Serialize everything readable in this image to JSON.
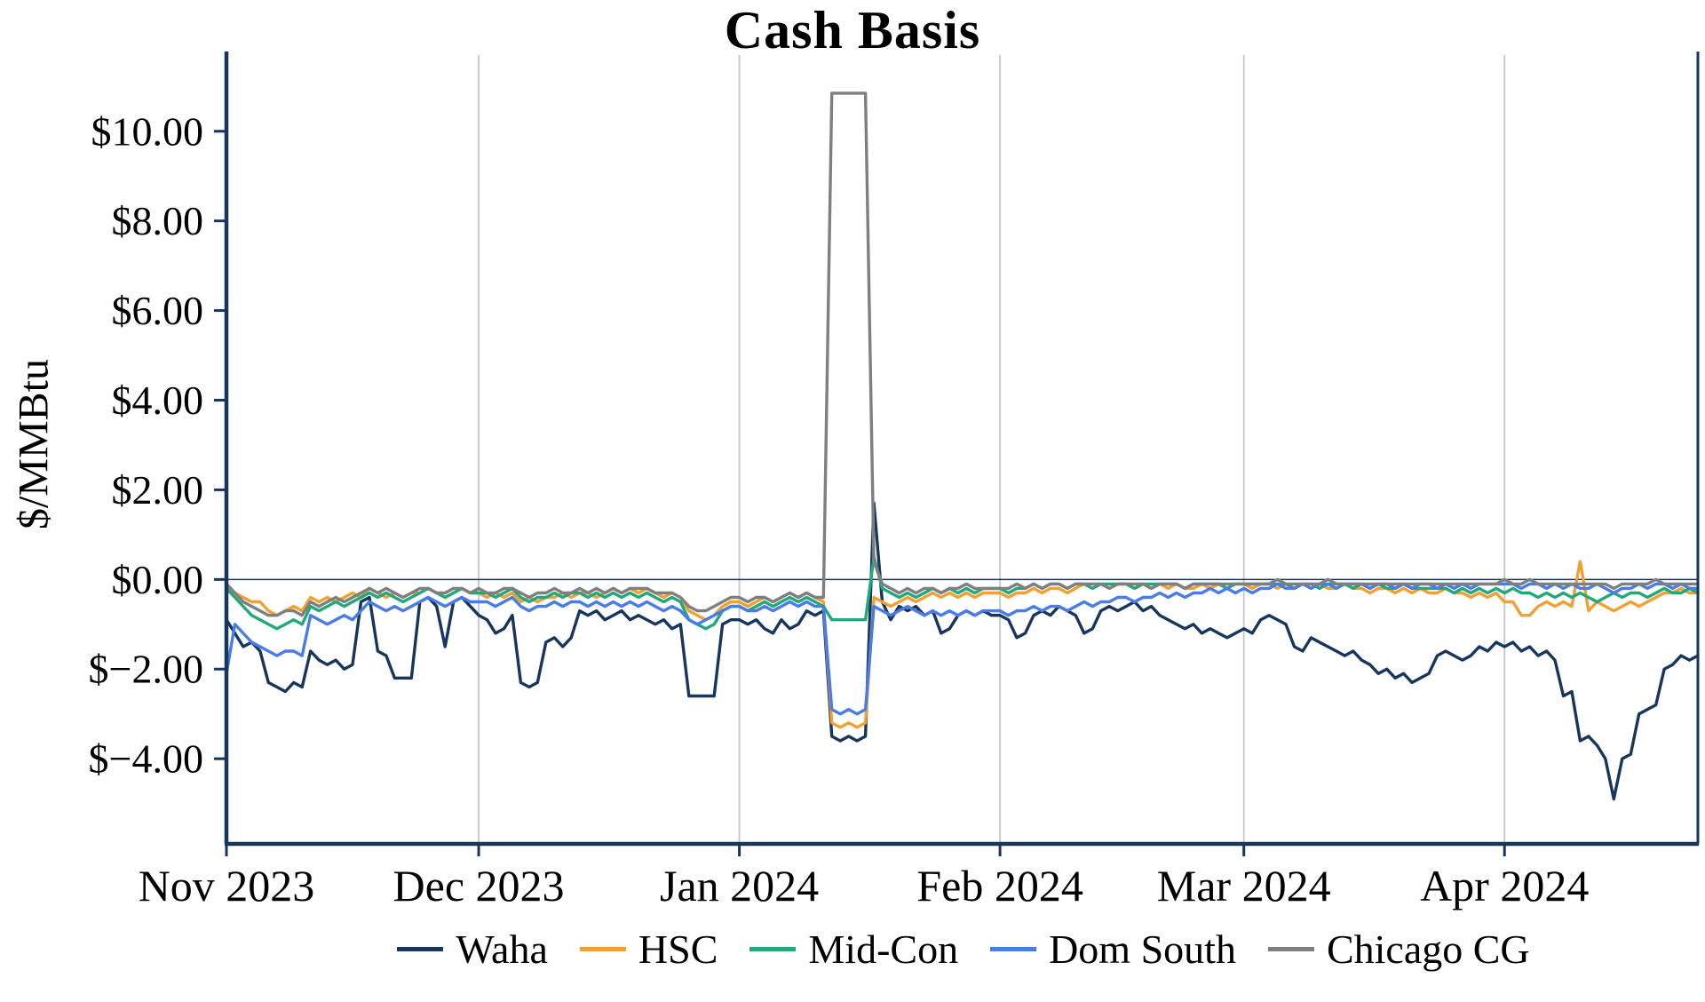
{
  "title": "Cash Basis",
  "chart_data": {
    "type": "line",
    "title": "Cash Basis",
    "xlabel": "",
    "ylabel": "$/MMBtu",
    "start_date": "2023-11-01",
    "end_date": "2024-04-24",
    "frequency": "daily",
    "ylim": [
      -5.9,
      11.7
    ],
    "grid": "vertical-month-gridlines-and-zero-line",
    "legend_position": "bottom",
    "axis_color": "#17365d",
    "grid_color": "#c9cad1",
    "y_ticks": [
      {
        "value": 10,
        "label": "$10.00"
      },
      {
        "value": 8,
        "label": "$8.00"
      },
      {
        "value": 6,
        "label": "$6.00"
      },
      {
        "value": 4,
        "label": "$4.00"
      },
      {
        "value": 2,
        "label": "$2.00"
      },
      {
        "value": 0,
        "label": "$0.00"
      },
      {
        "value": -2,
        "label": "$−2.00"
      },
      {
        "value": -4,
        "label": "$−4.00"
      }
    ],
    "x_ticks": [
      {
        "index": 0,
        "label": "Nov 2023"
      },
      {
        "index": 30,
        "label": "Dec 2023"
      },
      {
        "index": 61,
        "label": "Jan 2024"
      },
      {
        "index": 92,
        "label": "Feb 2024"
      },
      {
        "index": 121,
        "label": "Mar 2024"
      },
      {
        "index": 152,
        "label": "Apr 2024"
      }
    ],
    "series": [
      {
        "name": "Waha",
        "color": "#17365d",
        "values": [
          -0.9,
          -1.2,
          -1.5,
          -1.4,
          -1.6,
          -2.3,
          -2.4,
          -2.5,
          -2.3,
          -2.4,
          -1.6,
          -1.8,
          -1.9,
          -1.8,
          -2.0,
          -1.9,
          -0.5,
          -0.4,
          -1.6,
          -1.7,
          -2.2,
          -2.2,
          -2.2,
          -0.5,
          -0.4,
          -0.6,
          -1.5,
          -0.5,
          -0.4,
          -0.6,
          -0.8,
          -0.9,
          -1.2,
          -1.1,
          -0.8,
          -2.3,
          -2.4,
          -2.3,
          -1.4,
          -1.3,
          -1.5,
          -1.3,
          -0.7,
          -0.8,
          -0.7,
          -0.9,
          -0.8,
          -0.7,
          -0.9,
          -0.8,
          -0.9,
          -1.0,
          -0.9,
          -1.1,
          -1.0,
          -2.6,
          -2.6,
          -2.6,
          -2.6,
          -1.0,
          -0.9,
          -0.9,
          -1.0,
          -0.9,
          -1.1,
          -1.2,
          -0.9,
          -1.1,
          -1.0,
          -0.7,
          -0.8,
          -0.7,
          -3.5,
          -3.6,
          -3.5,
          -3.6,
          -3.5,
          1.7,
          -0.5,
          -0.9,
          -0.6,
          -0.7,
          -0.6,
          -0.8,
          -0.7,
          -1.2,
          -1.1,
          -0.8,
          -0.7,
          -0.8,
          -0.7,
          -0.8,
          -0.8,
          -0.9,
          -1.3,
          -1.2,
          -0.8,
          -0.7,
          -0.8,
          -0.6,
          -0.7,
          -0.8,
          -1.2,
          -1.1,
          -0.7,
          -0.6,
          -0.7,
          -0.6,
          -0.5,
          -0.7,
          -0.6,
          -0.8,
          -0.9,
          -1.0,
          -1.1,
          -1.0,
          -1.2,
          -1.1,
          -1.2,
          -1.3,
          -1.2,
          -1.1,
          -1.2,
          -0.9,
          -0.8,
          -0.9,
          -1.0,
          -1.5,
          -1.6,
          -1.3,
          -1.4,
          -1.5,
          -1.6,
          -1.7,
          -1.6,
          -1.8,
          -1.9,
          -2.1,
          -2.0,
          -2.2,
          -2.1,
          -2.3,
          -2.2,
          -2.1,
          -1.7,
          -1.6,
          -1.7,
          -1.8,
          -1.7,
          -1.5,
          -1.6,
          -1.4,
          -1.5,
          -1.4,
          -1.6,
          -1.5,
          -1.7,
          -1.6,
          -1.8,
          -2.6,
          -2.5,
          -3.6,
          -3.5,
          -3.7,
          -4.0,
          -4.9,
          -4.0,
          -3.9,
          -3.0,
          -2.9,
          -2.8,
          -2.0,
          -1.9,
          -1.7,
          -1.8,
          -1.7
        ]
      },
      {
        "name": "HSC",
        "color": "#f0a132",
        "values": [
          -0.1,
          -0.3,
          -0.4,
          -0.5,
          -0.5,
          -0.7,
          -0.8,
          -0.7,
          -0.6,
          -0.7,
          -0.4,
          -0.5,
          -0.4,
          -0.5,
          -0.4,
          -0.3,
          -0.4,
          -0.2,
          -0.3,
          -0.4,
          -0.3,
          -0.4,
          -0.3,
          -0.3,
          -0.2,
          -0.3,
          -0.4,
          -0.3,
          -0.2,
          -0.3,
          -0.3,
          -0.4,
          -0.3,
          -0.4,
          -0.3,
          -0.5,
          -0.4,
          -0.5,
          -0.4,
          -0.4,
          -0.3,
          -0.4,
          -0.3,
          -0.3,
          -0.4,
          -0.3,
          -0.2,
          -0.3,
          -0.2,
          -0.3,
          -0.2,
          -0.3,
          -0.4,
          -0.3,
          -0.4,
          -0.7,
          -0.8,
          -0.9,
          -0.8,
          -0.6,
          -0.5,
          -0.5,
          -0.6,
          -0.5,
          -0.4,
          -0.5,
          -0.4,
          -0.3,
          -0.4,
          -0.3,
          -0.4,
          -0.5,
          -3.2,
          -3.3,
          -3.2,
          -3.3,
          -3.2,
          -0.4,
          -0.5,
          -0.6,
          -0.5,
          -0.4,
          -0.5,
          -0.4,
          -0.3,
          -0.4,
          -0.3,
          -0.4,
          -0.3,
          -0.4,
          -0.3,
          -0.3,
          -0.3,
          -0.4,
          -0.3,
          -0.3,
          -0.2,
          -0.3,
          -0.2,
          -0.2,
          -0.3,
          -0.2,
          -0.1,
          -0.2,
          -0.1,
          -0.2,
          -0.1,
          -0.1,
          -0.2,
          -0.1,
          -0.2,
          -0.1,
          -0.2,
          -0.1,
          -0.2,
          -0.2,
          -0.1,
          -0.2,
          -0.1,
          -0.2,
          -0.1,
          -0.1,
          -0.2,
          -0.1,
          -0.1,
          -0.2,
          -0.1,
          -0.2,
          -0.1,
          -0.2,
          -0.1,
          -0.2,
          -0.2,
          -0.1,
          -0.2,
          -0.2,
          -0.3,
          -0.2,
          -0.2,
          -0.3,
          -0.2,
          -0.3,
          -0.2,
          -0.3,
          -0.3,
          -0.2,
          -0.3,
          -0.3,
          -0.4,
          -0.3,
          -0.4,
          -0.3,
          -0.5,
          -0.5,
          -0.8,
          -0.8,
          -0.6,
          -0.5,
          -0.6,
          -0.5,
          -0.6,
          0.4,
          -0.7,
          -0.5,
          -0.6,
          -0.7,
          -0.6,
          -0.5,
          -0.6,
          -0.5,
          -0.4,
          -0.3,
          -0.3,
          -0.2,
          -0.3,
          -0.3
        ]
      },
      {
        "name": "Mid-Con",
        "color": "#21a87d",
        "values": [
          -0.2,
          -0.4,
          -0.6,
          -0.8,
          -0.9,
          -1.0,
          -1.1,
          -1.0,
          -0.9,
          -1.0,
          -0.6,
          -0.7,
          -0.6,
          -0.5,
          -0.6,
          -0.5,
          -0.4,
          -0.3,
          -0.4,
          -0.3,
          -0.4,
          -0.5,
          -0.4,
          -0.3,
          -0.2,
          -0.3,
          -0.4,
          -0.3,
          -0.2,
          -0.3,
          -0.3,
          -0.3,
          -0.4,
          -0.3,
          -0.2,
          -0.4,
          -0.5,
          -0.4,
          -0.4,
          -0.3,
          -0.4,
          -0.3,
          -0.3,
          -0.4,
          -0.3,
          -0.4,
          -0.3,
          -0.4,
          -0.3,
          -0.4,
          -0.3,
          -0.4,
          -0.5,
          -0.4,
          -0.5,
          -0.9,
          -1.0,
          -1.1,
          -1.0,
          -0.7,
          -0.6,
          -0.6,
          -0.7,
          -0.6,
          -0.5,
          -0.6,
          -0.5,
          -0.4,
          -0.5,
          -0.4,
          -0.5,
          -0.6,
          -0.9,
          -0.9,
          -0.9,
          -0.9,
          -0.9,
          0.5,
          -0.2,
          -0.3,
          -0.4,
          -0.3,
          -0.4,
          -0.3,
          -0.2,
          -0.3,
          -0.2,
          -0.3,
          -0.2,
          -0.3,
          -0.2,
          -0.2,
          -0.2,
          -0.3,
          -0.2,
          -0.2,
          -0.1,
          -0.2,
          -0.1,
          -0.1,
          -0.2,
          -0.1,
          -0.1,
          -0.2,
          -0.1,
          -0.1,
          -0.1,
          -0.1,
          -0.2,
          -0.1,
          -0.1,
          -0.1,
          -0.1,
          -0.1,
          -0.2,
          -0.1,
          -0.1,
          -0.1,
          -0.1,
          -0.2,
          -0.1,
          -0.1,
          -0.1,
          -0.1,
          -0.1,
          -0.1,
          -0.1,
          -0.2,
          -0.1,
          -0.1,
          -0.2,
          -0.1,
          -0.1,
          -0.1,
          -0.2,
          -0.1,
          -0.2,
          -0.1,
          -0.2,
          -0.2,
          -0.1,
          -0.2,
          -0.2,
          -0.2,
          -0.2,
          -0.2,
          -0.3,
          -0.2,
          -0.3,
          -0.2,
          -0.3,
          -0.2,
          -0.3,
          -0.2,
          -0.3,
          -0.3,
          -0.4,
          -0.3,
          -0.4,
          -0.3,
          -0.4,
          -0.3,
          -0.4,
          -0.5,
          -0.4,
          -0.3,
          -0.4,
          -0.3,
          -0.3,
          -0.4,
          -0.3,
          -0.2,
          -0.3,
          -0.3,
          -0.2,
          -0.3
        ]
      },
      {
        "name": "Dom South",
        "color": "#4a7ce8",
        "values": [
          -2.1,
          -1.0,
          -1.2,
          -1.4,
          -1.5,
          -1.6,
          -1.7,
          -1.6,
          -1.6,
          -1.7,
          -0.8,
          -0.9,
          -1.0,
          -0.9,
          -0.8,
          -0.9,
          -0.7,
          -0.5,
          -0.6,
          -0.7,
          -0.6,
          -0.7,
          -0.6,
          -0.5,
          -0.4,
          -0.5,
          -0.6,
          -0.5,
          -0.4,
          -0.5,
          -0.5,
          -0.5,
          -0.6,
          -0.5,
          -0.4,
          -0.6,
          -0.7,
          -0.6,
          -0.6,
          -0.5,
          -0.6,
          -0.5,
          -0.5,
          -0.6,
          -0.5,
          -0.6,
          -0.5,
          -0.6,
          -0.5,
          -0.6,
          -0.5,
          -0.6,
          -0.7,
          -0.6,
          -0.7,
          -0.9,
          -1.0,
          -0.9,
          -0.8,
          -0.7,
          -0.6,
          -0.6,
          -0.7,
          -0.7,
          -0.6,
          -0.7,
          -0.6,
          -0.5,
          -0.6,
          -0.5,
          -0.6,
          -0.6,
          -2.9,
          -3.0,
          -2.9,
          -3.0,
          -2.9,
          -0.6,
          -0.7,
          -0.8,
          -0.7,
          -0.6,
          -0.7,
          -0.8,
          -0.7,
          -0.8,
          -0.7,
          -0.8,
          -0.7,
          -0.8,
          -0.7,
          -0.7,
          -0.7,
          -0.8,
          -0.7,
          -0.7,
          -0.6,
          -0.7,
          -0.6,
          -0.6,
          -0.7,
          -0.6,
          -0.5,
          -0.6,
          -0.5,
          -0.5,
          -0.4,
          -0.4,
          -0.5,
          -0.4,
          -0.4,
          -0.3,
          -0.4,
          -0.3,
          -0.4,
          -0.3,
          -0.3,
          -0.2,
          -0.3,
          -0.2,
          -0.3,
          -0.2,
          -0.3,
          -0.2,
          -0.2,
          -0.1,
          -0.2,
          -0.2,
          -0.1,
          -0.2,
          -0.1,
          -0.1,
          -0.2,
          -0.1,
          -0.1,
          -0.1,
          -0.2,
          -0.1,
          -0.1,
          -0.2,
          -0.1,
          -0.2,
          -0.1,
          -0.1,
          -0.2,
          -0.1,
          -0.2,
          -0.1,
          -0.2,
          -0.1,
          -0.1,
          -0.1,
          -0.1,
          -0.1,
          -0.2,
          -0.1,
          -0.1,
          -0.2,
          -0.1,
          -0.2,
          -0.1,
          -0.2,
          -0.2,
          -0.1,
          -0.2,
          -0.3,
          -0.2,
          -0.2,
          -0.1,
          -0.2,
          -0.1,
          -0.1,
          -0.2,
          -0.1,
          -0.2,
          -0.2
        ]
      },
      {
        "name": "Chicago CG",
        "color": "#7f7f7f",
        "values": [
          -0.1,
          -0.3,
          -0.5,
          -0.6,
          -0.7,
          -0.8,
          -0.8,
          -0.7,
          -0.7,
          -0.8,
          -0.5,
          -0.6,
          -0.5,
          -0.4,
          -0.5,
          -0.4,
          -0.3,
          -0.2,
          -0.3,
          -0.2,
          -0.3,
          -0.4,
          -0.3,
          -0.2,
          -0.2,
          -0.3,
          -0.3,
          -0.2,
          -0.2,
          -0.3,
          -0.2,
          -0.3,
          -0.3,
          -0.2,
          -0.2,
          -0.3,
          -0.4,
          -0.3,
          -0.3,
          -0.2,
          -0.3,
          -0.3,
          -0.2,
          -0.3,
          -0.2,
          -0.3,
          -0.2,
          -0.3,
          -0.2,
          -0.2,
          -0.2,
          -0.3,
          -0.3,
          -0.3,
          -0.4,
          -0.6,
          -0.7,
          -0.7,
          -0.6,
          -0.5,
          -0.4,
          -0.4,
          -0.5,
          -0.4,
          -0.4,
          -0.5,
          -0.4,
          -0.3,
          -0.4,
          -0.3,
          -0.4,
          -0.4,
          10.85,
          10.85,
          10.85,
          10.85,
          10.85,
          0.4,
          -0.1,
          -0.2,
          -0.3,
          -0.2,
          -0.3,
          -0.2,
          -0.2,
          -0.3,
          -0.2,
          -0.2,
          -0.1,
          -0.2,
          -0.2,
          -0.2,
          -0.2,
          -0.2,
          -0.1,
          -0.2,
          -0.1,
          -0.2,
          -0.1,
          -0.1,
          -0.2,
          -0.1,
          -0.1,
          -0.1,
          -0.1,
          -0.2,
          -0.1,
          -0.1,
          -0.1,
          -0.1,
          -0.2,
          -0.1,
          -0.1,
          -0.1,
          -0.2,
          -0.1,
          -0.1,
          -0.1,
          -0.1,
          -0.1,
          -0.1,
          -0.1,
          -0.1,
          -0.1,
          -0.1,
          0,
          -0.1,
          -0.1,
          -0.1,
          -0.1,
          -0.1,
          0,
          -0.1,
          -0.1,
          -0.1,
          -0.1,
          -0.1,
          -0.1,
          -0.1,
          -0.1,
          -0.1,
          -0.1,
          -0.1,
          -0.1,
          -0.1,
          -0.1,
          -0.1,
          -0.1,
          -0.1,
          -0.1,
          -0.1,
          -0.1,
          0,
          -0.1,
          -0.1,
          0,
          -0.1,
          -0.1,
          -0.1,
          -0.1,
          -0.1,
          -0.1,
          -0.1,
          -0.1,
          -0.1,
          -0.2,
          -0.1,
          -0.1,
          -0.1,
          -0.1,
          0,
          -0.1,
          -0.1,
          -0.1,
          -0.1,
          -0.1
        ]
      }
    ]
  }
}
